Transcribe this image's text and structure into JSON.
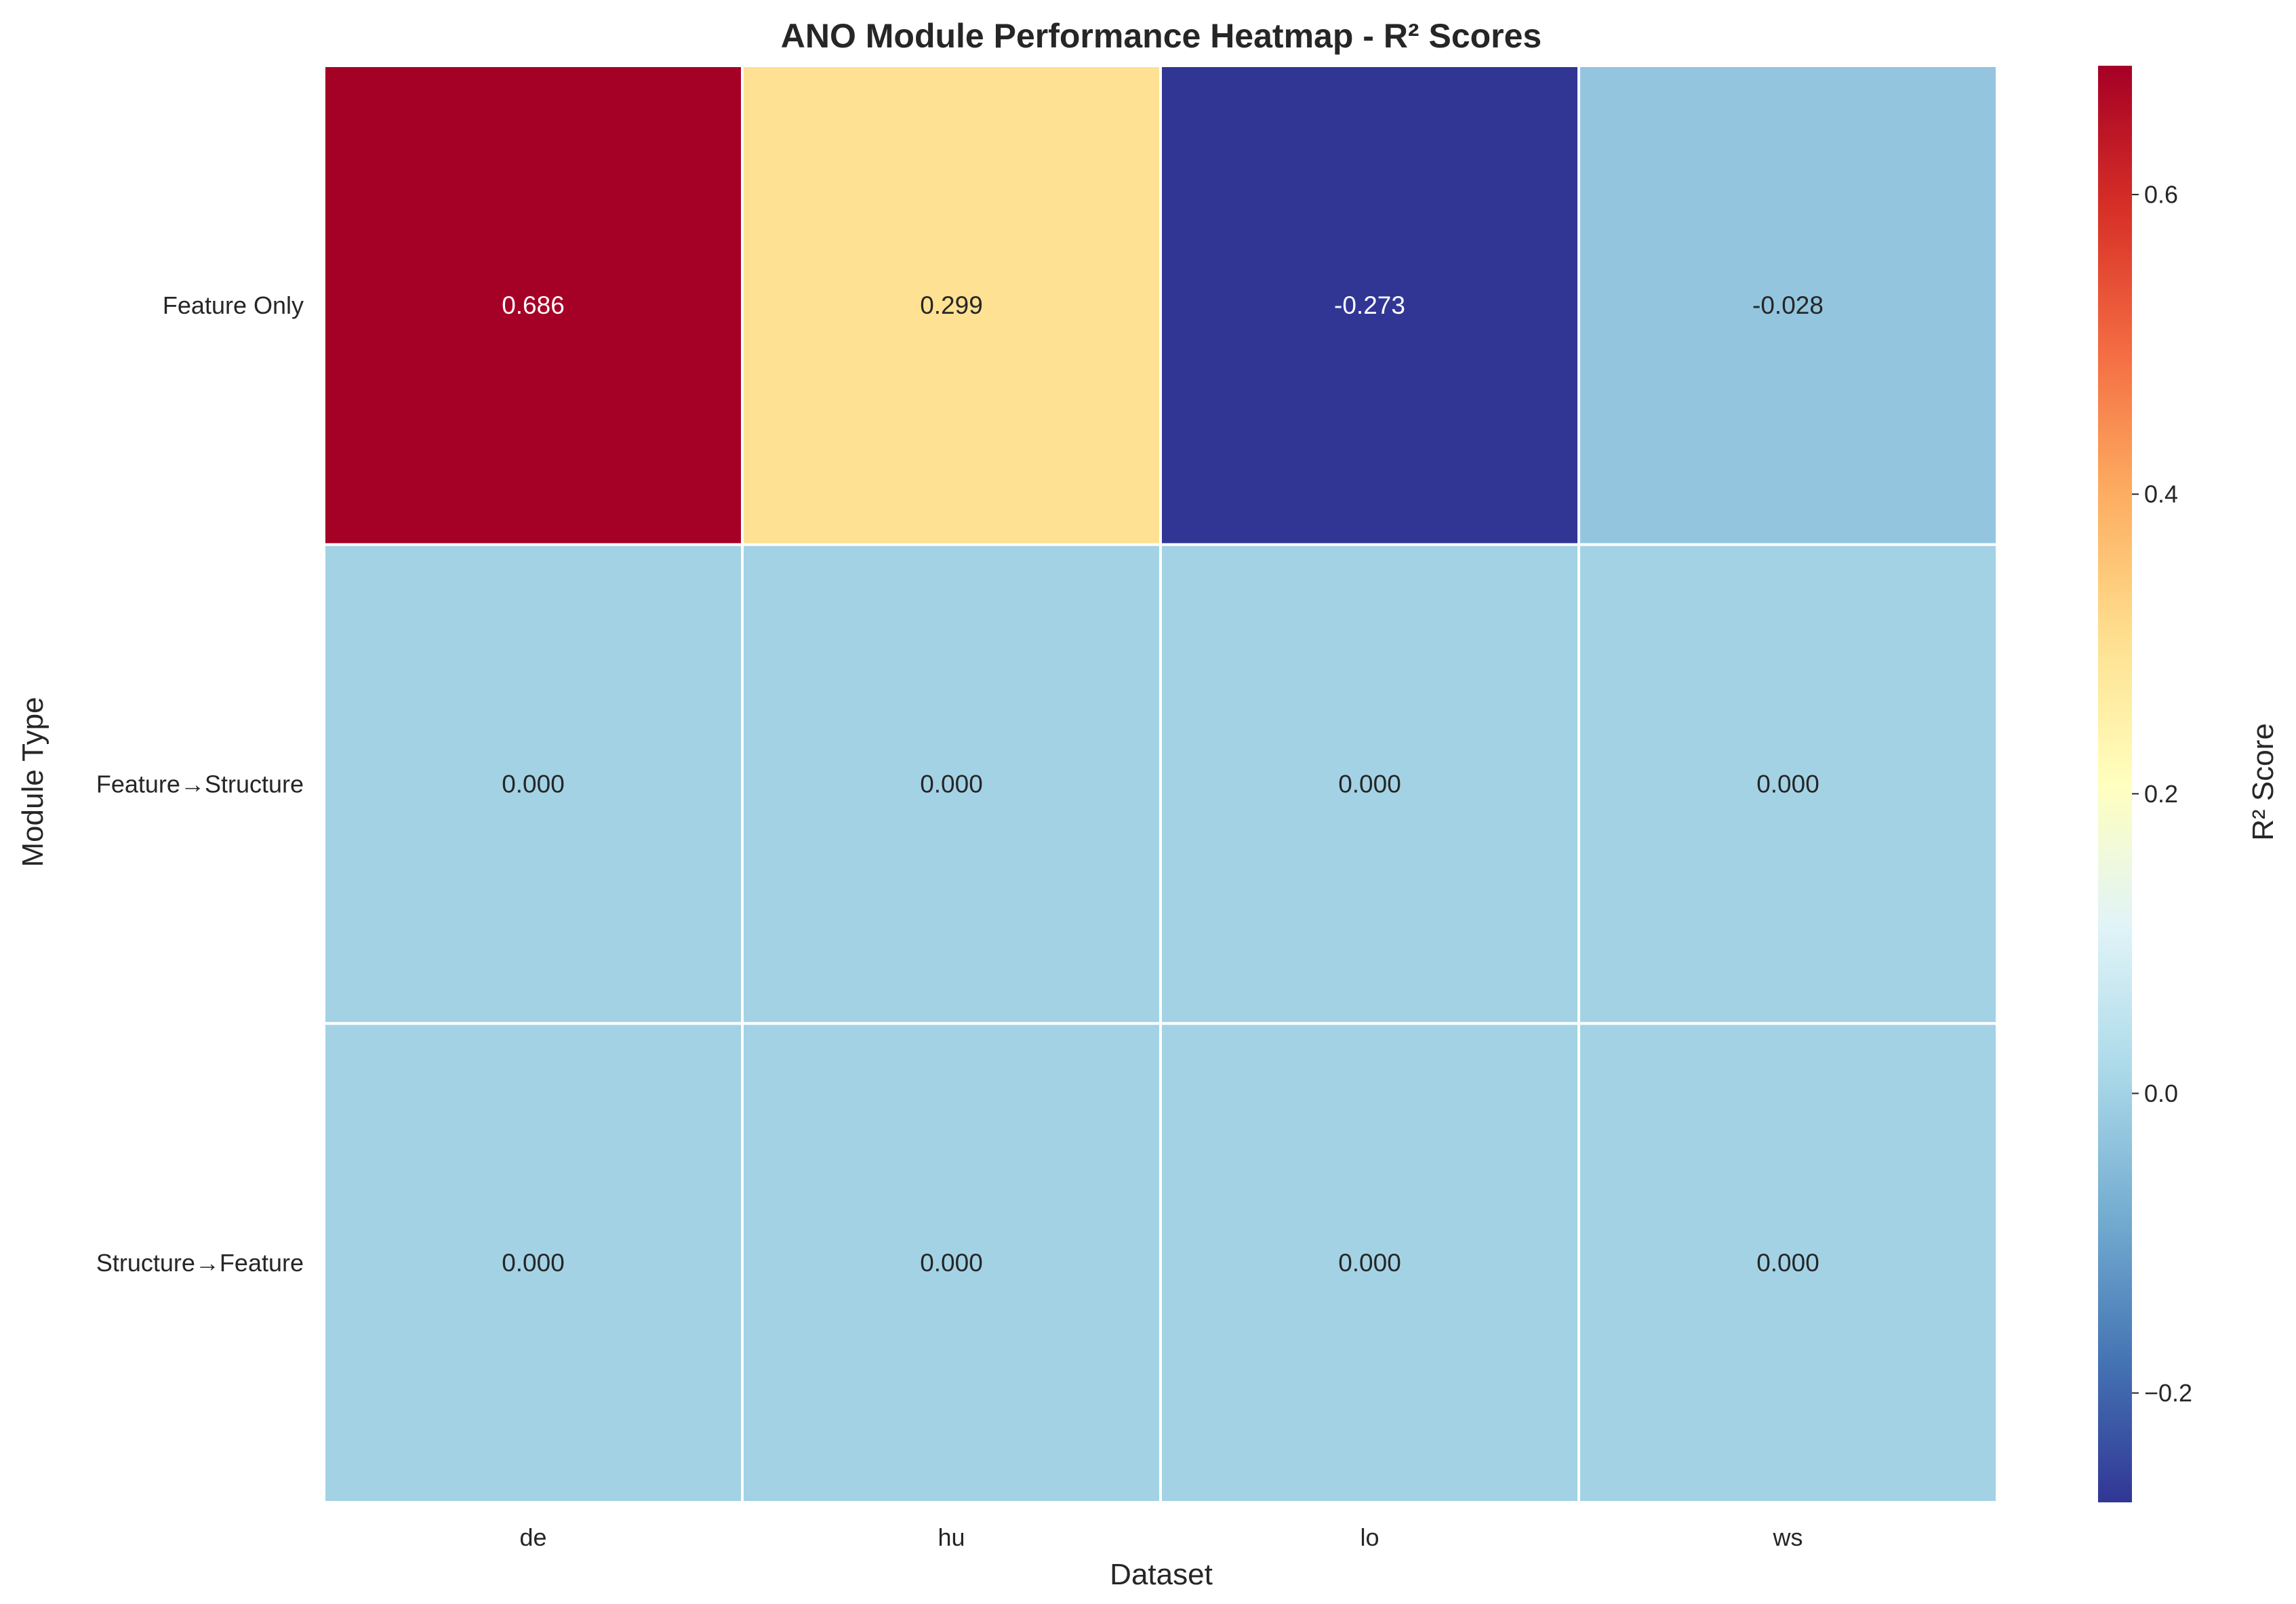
{
  "chart_data": {
    "type": "heatmap",
    "title": "ANO Module Performance Heatmap - R² Scores",
    "xlabel": "Dataset",
    "ylabel": "Module Type",
    "colorbar_label": "R² Score",
    "colormap": "RdYlBu_r",
    "x_categories": [
      "de",
      "hu",
      "lo",
      "ws"
    ],
    "y_categories": [
      "Feature Only",
      "Feature→Structure",
      "Structure→Feature"
    ],
    "values": [
      [
        0.686,
        0.299,
        -0.273,
        -0.028
      ],
      [
        0.0,
        0.0,
        0.0,
        0.0
      ],
      [
        0.0,
        0.0,
        0.0,
        0.0
      ]
    ],
    "value_labels": [
      [
        "0.686",
        "0.299",
        "-0.273",
        "-0.028"
      ],
      [
        "0.000",
        "0.000",
        "0.000",
        "0.000"
      ],
      [
        "0.000",
        "0.000",
        "0.000",
        "0.000"
      ]
    ],
    "color_range": [
      -0.273,
      0.686
    ],
    "colorbar_ticks": [
      {
        "value": 0.6,
        "label": "0.6"
      },
      {
        "value": 0.4,
        "label": "0.4"
      },
      {
        "value": 0.2,
        "label": "0.2"
      },
      {
        "value": 0.0,
        "label": "0.0"
      },
      {
        "value": -0.2,
        "label": "−0.2"
      }
    ],
    "grid": false,
    "cell_border_color": "#ffffff"
  }
}
